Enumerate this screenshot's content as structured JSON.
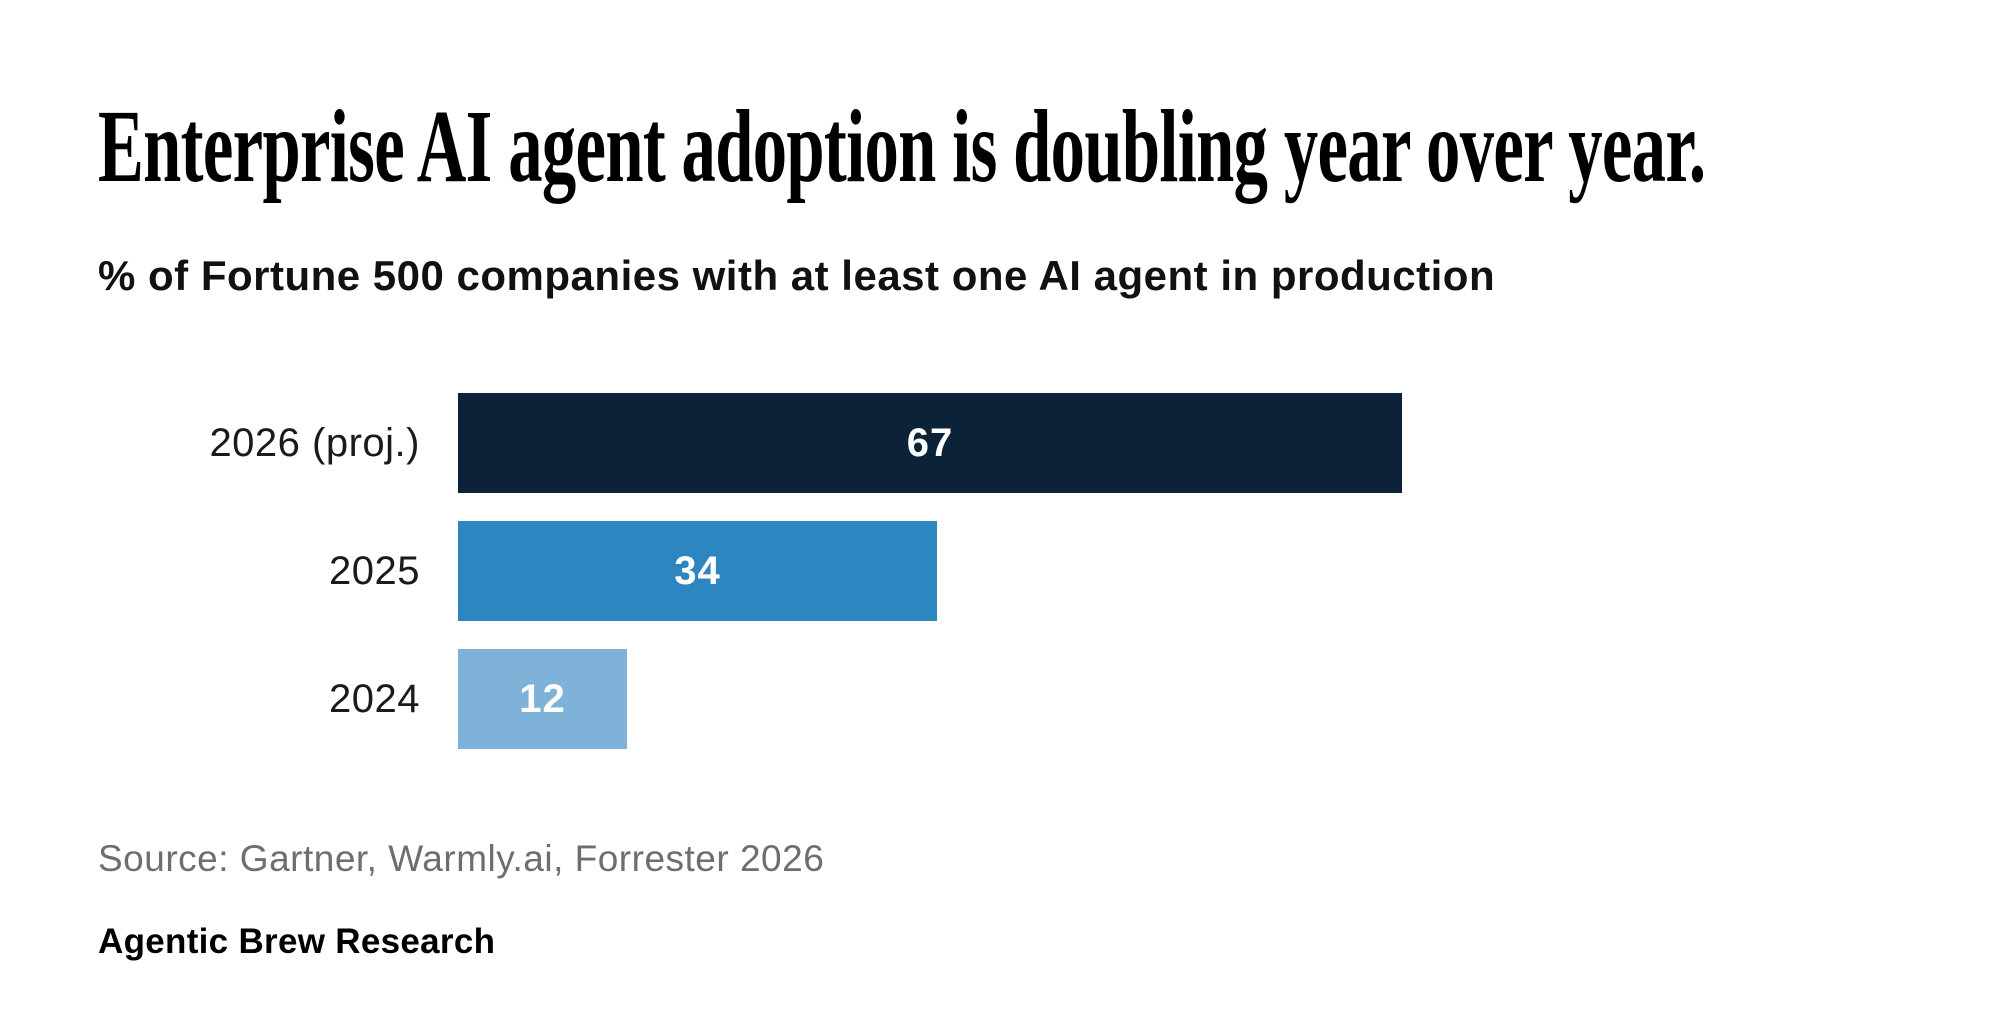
{
  "header": {
    "title": "Enterprise AI agent adoption is doubling year over year.",
    "subtitle": "% of Fortune 500 companies with at least one AI agent in production"
  },
  "chart_data": {
    "type": "bar",
    "orientation": "horizontal",
    "title": "Enterprise AI agent adoption is doubling year over year.",
    "subtitle": "% of Fortune 500 companies with at least one AI agent in production",
    "categories": [
      "2026 (proj.)",
      "2025",
      "2024"
    ],
    "values": [
      67,
      34,
      12
    ],
    "unit": "%",
    "bar_colors": [
      "#0b2239",
      "#2e86c1",
      "#7fb2d8"
    ],
    "value_label_color": "#ffffff",
    "xlim": [
      0,
      70
    ],
    "grid": false,
    "legend": false,
    "value_labels_inside_bars": true
  },
  "footer": {
    "source": "Source: Gartner, Warmly.ai, Forrester 2026",
    "brand": "Agentic Brew Research"
  }
}
